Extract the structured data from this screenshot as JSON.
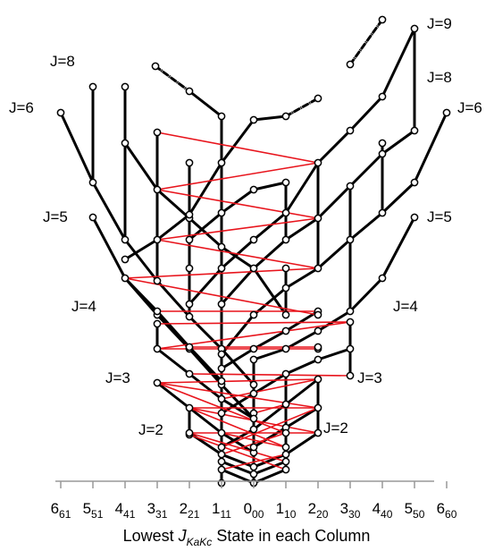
{
  "x_axis": {
    "title_prefix": "Lowest ",
    "title_symbol": "J",
    "title_subscript": "KaKc",
    "title_suffix": " State in each Column",
    "ticks": [
      {
        "main": "6",
        "sub": "61"
      },
      {
        "main": "5",
        "sub": "51"
      },
      {
        "main": "4",
        "sub": "41"
      },
      {
        "main": "3",
        "sub": "31"
      },
      {
        "main": "2",
        "sub": "21"
      },
      {
        "main": "1",
        "sub": "11"
      },
      {
        "main": "0",
        "sub": "00"
      },
      {
        "main": "1",
        "sub": "10"
      },
      {
        "main": "2",
        "sub": "20"
      },
      {
        "main": "3",
        "sub": "30"
      },
      {
        "main": "4",
        "sub": "40"
      },
      {
        "main": "5",
        "sub": "50"
      },
      {
        "main": "6",
        "sub": "60"
      }
    ]
  },
  "j_labels": {
    "left": [
      "J=8",
      "J=6",
      "J=5",
      "J=4",
      "J=3",
      "J=2"
    ],
    "right": [
      "J=9",
      "J=8",
      "J=6",
      "J=5",
      "J=4",
      "J=3",
      "J=2"
    ]
  },
  "colors": {
    "levels": "#000000",
    "transitions": "#e8141c",
    "node_fill": "#ffffff"
  }
}
